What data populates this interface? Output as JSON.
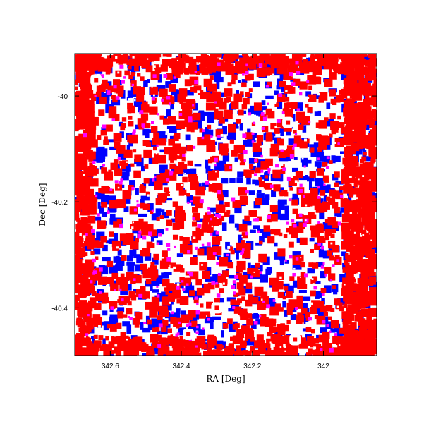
{
  "chart_data": {
    "type": "scatter",
    "title": "",
    "xlabel": "RA [Deg]",
    "ylabel": "Dec [Deg]",
    "x_reversed": true,
    "xlim": [
      342.7,
      341.85
    ],
    "ylim": [
      -40.49,
      -39.92
    ],
    "xticks": [
      {
        "value": 342.6,
        "label": "342.6"
      },
      {
        "value": 342.4,
        "label": "342.4"
      },
      {
        "value": 342.2,
        "label": "342.2"
      },
      {
        "value": 342.0,
        "label": "342"
      }
    ],
    "yticks": [
      {
        "value": -40.0,
        "label": "-40"
      },
      {
        "value": -40.2,
        "label": "-40.2"
      },
      {
        "value": -40.4,
        "label": "-40.4"
      }
    ],
    "series_colors": {
      "red": "#ff0000",
      "blue": "#0000ff",
      "magenta": "#ff00ff"
    },
    "holes": [
      {
        "ra": 342.64,
        "dec": -39.97
      },
      {
        "ra": 342.1,
        "dec": -40.05
      },
      {
        "ra": 342.3,
        "dec": -40.4
      },
      {
        "ra": 342.38,
        "dec": -40.45
      },
      {
        "ra": 342.08,
        "dec": -40.46
      }
    ],
    "grid": false,
    "legend": "none"
  }
}
